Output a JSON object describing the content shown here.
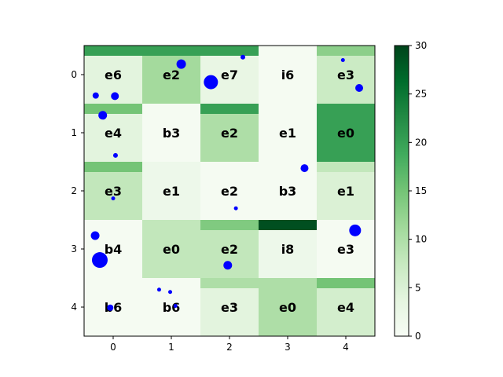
{
  "chart_data": {
    "type": "heatmap",
    "title": "",
    "xlabel": "",
    "ylabel": "",
    "x_ticks": [
      "0",
      "1",
      "2",
      "3",
      "4"
    ],
    "y_ticks": [
      "0",
      "1",
      "2",
      "3",
      "4"
    ],
    "xlim": [
      -0.5,
      4.5
    ],
    "ylim": [
      4.5,
      -0.5
    ],
    "colormap": "Greens",
    "colorbar": {
      "min": 0,
      "max": 30,
      "ticks": [
        "0",
        "5",
        "10",
        "15",
        "20",
        "25",
        "30"
      ]
    },
    "cells": [
      {
        "row": 0,
        "col": 0,
        "label": "e6",
        "value": 4,
        "top_value": 20
      },
      {
        "row": 0,
        "col": 1,
        "label": "e2",
        "value": 11,
        "top_value": 20
      },
      {
        "row": 0,
        "col": 2,
        "label": "e7",
        "value": 3,
        "top_value": 20
      },
      {
        "row": 0,
        "col": 3,
        "label": "i6",
        "value": 0.5,
        "top_value": 0.5
      },
      {
        "row": 0,
        "col": 4,
        "label": "e3",
        "value": 7,
        "top_value": 13
      },
      {
        "row": 1,
        "col": 0,
        "label": "e4",
        "value": 4,
        "top_value": 15
      },
      {
        "row": 1,
        "col": 1,
        "label": "b3",
        "value": 0.5,
        "top_value": 0.5
      },
      {
        "row": 1,
        "col": 2,
        "label": "e2",
        "value": 10,
        "top_value": 20
      },
      {
        "row": 1,
        "col": 3,
        "label": "e1",
        "value": 0.5,
        "top_value": 0.5
      },
      {
        "row": 1,
        "col": 4,
        "label": "e0",
        "value": 20,
        "top_value": 20
      },
      {
        "row": 2,
        "col": 0,
        "label": "e3",
        "value": 8,
        "top_value": 15
      },
      {
        "row": 2,
        "col": 1,
        "label": "e1",
        "value": 2,
        "top_value": 2
      },
      {
        "row": 2,
        "col": 2,
        "label": "e2",
        "value": 0.5,
        "top_value": 0.5
      },
      {
        "row": 2,
        "col": 3,
        "label": "b3",
        "value": 0.5,
        "top_value": 0.5
      },
      {
        "row": 2,
        "col": 4,
        "label": "e1",
        "value": 5,
        "top_value": 8
      },
      {
        "row": 3,
        "col": 0,
        "label": "b4",
        "value": 0.5,
        "top_value": 0.5
      },
      {
        "row": 3,
        "col": 1,
        "label": "e0",
        "value": 8,
        "top_value": 8
      },
      {
        "row": 3,
        "col": 2,
        "label": "e2",
        "value": 8,
        "top_value": 14
      },
      {
        "row": 3,
        "col": 3,
        "label": "i8",
        "value": 2,
        "top_value": 29
      },
      {
        "row": 3,
        "col": 4,
        "label": "e3",
        "value": 0.5,
        "top_value": 0.5
      },
      {
        "row": 4,
        "col": 0,
        "label": "b6",
        "value": 0.5,
        "top_value": 0.5
      },
      {
        "row": 4,
        "col": 1,
        "label": "b6",
        "value": 0.5,
        "top_value": 0.5
      },
      {
        "row": 4,
        "col": 2,
        "label": "e3",
        "value": 4,
        "top_value": 10
      },
      {
        "row": 4,
        "col": 3,
        "label": "e0",
        "value": 10,
        "top_value": 10
      },
      {
        "row": 4,
        "col": 4,
        "label": "e4",
        "value": 6,
        "top_value": 15
      }
    ],
    "scatter": {
      "color": "#0000ff",
      "points": [
        {
          "x": 1.17,
          "y": -0.18,
          "size": 6
        },
        {
          "x": -0.3,
          "y": 0.36,
          "size": 4
        },
        {
          "x": 0.03,
          "y": 0.37,
          "size": 5
        },
        {
          "x": 1.68,
          "y": 0.13,
          "size": 9
        },
        {
          "x": 2.23,
          "y": -0.3,
          "size": 3
        },
        {
          "x": 3.95,
          "y": -0.25,
          "size": 2.5
        },
        {
          "x": 4.23,
          "y": 0.23,
          "size": 5
        },
        {
          "x": -0.18,
          "y": 0.7,
          "size": 5.5
        },
        {
          "x": 0.04,
          "y": 1.39,
          "size": 3
        },
        {
          "x": 3.29,
          "y": 1.61,
          "size": 5
        },
        {
          "x": 0.0,
          "y": 2.13,
          "size": 2.5
        },
        {
          "x": 2.11,
          "y": 2.3,
          "size": 2.5
        },
        {
          "x": -0.31,
          "y": 2.77,
          "size": 5.5
        },
        {
          "x": -0.23,
          "y": 3.19,
          "size": 10
        },
        {
          "x": 4.16,
          "y": 2.68,
          "size": 7.5
        },
        {
          "x": 1.97,
          "y": 3.28,
          "size": 5.5
        },
        {
          "x": 0.79,
          "y": 3.7,
          "size": 2.5
        },
        {
          "x": 0.98,
          "y": 3.74,
          "size": 2.5
        },
        {
          "x": -0.05,
          "y": 4.01,
          "size": 4
        },
        {
          "x": 1.07,
          "y": 3.98,
          "size": 2.5
        }
      ]
    }
  }
}
